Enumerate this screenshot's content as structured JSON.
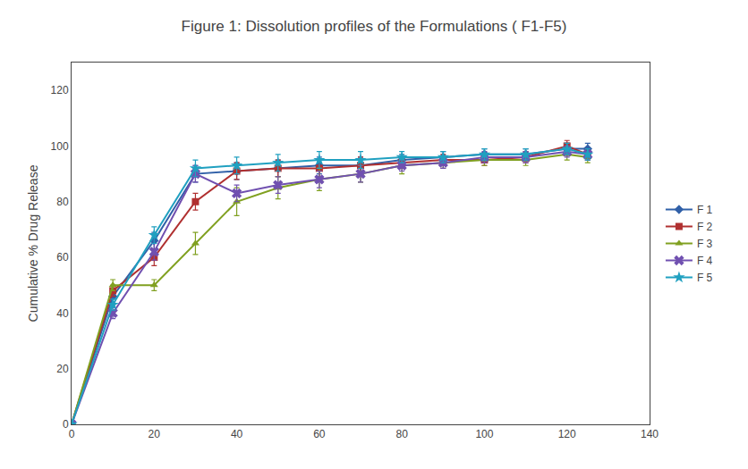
{
  "chart_data": {
    "type": "line",
    "title": "Figure 1: Dissolution profiles of the Formulations ( F1-F5)",
    "ylabel": "Cumulative % Drug Release",
    "x": [
      0,
      10,
      20,
      30,
      40,
      50,
      60,
      70,
      80,
      90,
      100,
      110,
      120,
      125
    ],
    "series": [
      {
        "name": "F 1",
        "color": "#3060a8",
        "marker": "diamond",
        "values": [
          0,
          46,
          66,
          90,
          91,
          92,
          93,
          93,
          95,
          96,
          97,
          97,
          99,
          99
        ],
        "errors": [
          0,
          2,
          3,
          3,
          3,
          3,
          3,
          3,
          2,
          2,
          2,
          2,
          2,
          2
        ]
      },
      {
        "name": "F 2",
        "color": "#b03030",
        "marker": "square",
        "values": [
          0,
          48,
          60,
          80,
          91,
          92,
          92,
          93,
          94,
          95,
          95,
          96,
          100,
          97
        ],
        "errors": [
          0,
          2,
          3,
          3,
          3,
          3,
          3,
          3,
          2,
          2,
          2,
          2,
          2,
          2
        ]
      },
      {
        "name": "F 3",
        "color": "#80a020",
        "marker": "triangle-up",
        "values": [
          0,
          50,
          50,
          65,
          80,
          85,
          88,
          90,
          93,
          94,
          95,
          95,
          97,
          96
        ],
        "errors": [
          0,
          2,
          2,
          4,
          5,
          4,
          4,
          3,
          3,
          2,
          2,
          2,
          2,
          2
        ]
      },
      {
        "name": "F 4",
        "color": "#7050b0",
        "marker": "x",
        "values": [
          0,
          40,
          62,
          90,
          83,
          86,
          88,
          90,
          93,
          94,
          96,
          96,
          98,
          97
        ],
        "errors": [
          0,
          2,
          3,
          3,
          3,
          3,
          3,
          3,
          2,
          2,
          2,
          2,
          2,
          2
        ]
      },
      {
        "name": "F 5",
        "color": "#20a0c0",
        "marker": "star",
        "values": [
          0,
          43,
          68,
          92,
          93,
          94,
          95,
          95,
          96,
          96,
          97,
          97,
          99,
          97
        ],
        "errors": [
          0,
          2,
          3,
          3,
          3,
          3,
          3,
          3,
          2,
          2,
          2,
          2,
          2,
          2
        ]
      }
    ],
    "xlim": [
      0,
      140
    ],
    "xticks": [
      0,
      20,
      40,
      60,
      80,
      100,
      120,
      140
    ],
    "ylim": [
      0,
      130
    ],
    "yticks": [
      0,
      20,
      40,
      60,
      80,
      100,
      120
    ],
    "grid": false,
    "legend": "right"
  }
}
